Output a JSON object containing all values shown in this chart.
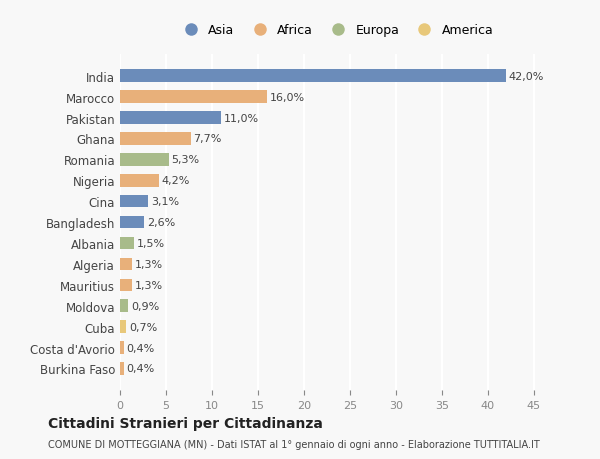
{
  "countries": [
    "India",
    "Marocco",
    "Pakistan",
    "Ghana",
    "Romania",
    "Nigeria",
    "Cina",
    "Bangladesh",
    "Albania",
    "Algeria",
    "Mauritius",
    "Moldova",
    "Cuba",
    "Costa d'Avorio",
    "Burkina Faso"
  ],
  "values": [
    42.0,
    16.0,
    11.0,
    7.7,
    5.3,
    4.2,
    3.1,
    2.6,
    1.5,
    1.3,
    1.3,
    0.9,
    0.7,
    0.4,
    0.4
  ],
  "labels": [
    "42,0%",
    "16,0%",
    "11,0%",
    "7,7%",
    "5,3%",
    "4,2%",
    "3,1%",
    "2,6%",
    "1,5%",
    "1,3%",
    "1,3%",
    "0,9%",
    "0,7%",
    "0,4%",
    "0,4%"
  ],
  "continents": [
    "Asia",
    "Africa",
    "Asia",
    "Africa",
    "Europa",
    "Africa",
    "Asia",
    "Asia",
    "Europa",
    "Africa",
    "Africa",
    "Europa",
    "America",
    "Africa",
    "Africa"
  ],
  "colors": {
    "Asia": "#6b8cba",
    "Africa": "#e8b07a",
    "Europa": "#a8bb8a",
    "America": "#e8c87a"
  },
  "legend_order": [
    "Asia",
    "Africa",
    "Europa",
    "America"
  ],
  "title": "Cittadini Stranieri per Cittadinanza",
  "subtitle": "COMUNE DI MOTTEGGIANA (MN) - Dati ISTAT al 1° gennaio di ogni anno - Elaborazione TUTTITALIA.IT",
  "xlim": [
    0,
    47
  ],
  "xticks": [
    0,
    5,
    10,
    15,
    20,
    25,
    30,
    35,
    40,
    45
  ],
  "background_color": "#f8f8f8",
  "grid_color": "#ffffff"
}
